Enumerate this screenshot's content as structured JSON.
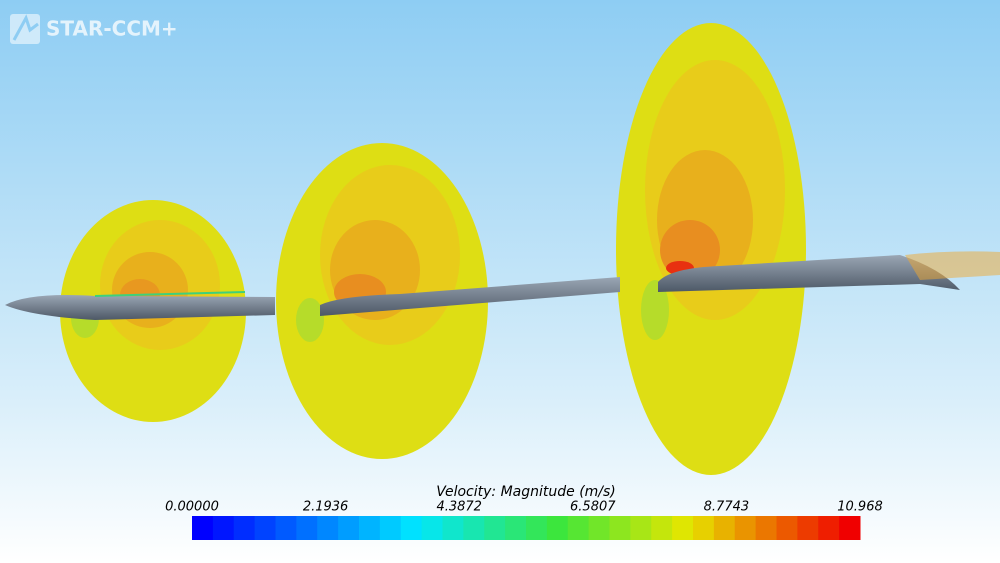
{
  "logo": "STAR-CCM+",
  "colorbar": {
    "title": "Velocity: Magnitude (m/s)",
    "range": [
      0,
      10.968
    ],
    "ticks": [
      {
        "value": 0,
        "label": "0.00000"
      },
      {
        "value": 2.1936,
        "label": "2.1936"
      },
      {
        "value": 4.3872,
        "label": "4.3872"
      },
      {
        "value": 6.5807,
        "label": "6.5807"
      },
      {
        "value": 8.7743,
        "label": "8.7743"
      },
      {
        "value": 10.968,
        "label": "10.968"
      }
    ]
  }
}
